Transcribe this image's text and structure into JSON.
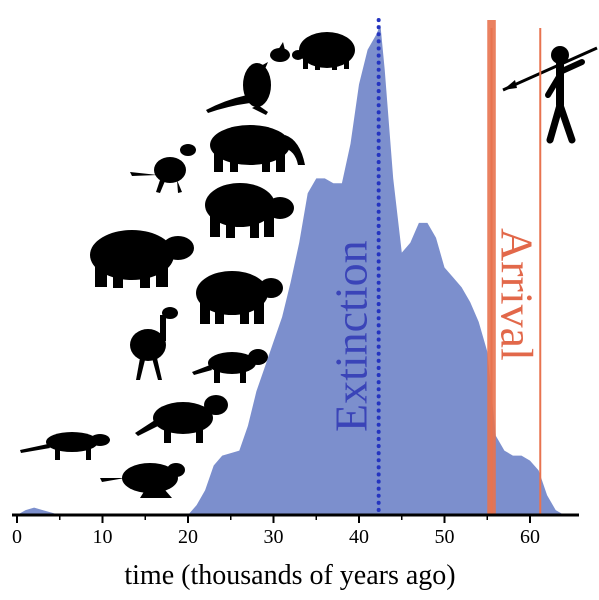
{
  "chart_data": {
    "type": "area",
    "xlabel": "time (thousands of years ago)",
    "xlim": [
      0,
      65
    ],
    "xticks": [
      0,
      10,
      20,
      30,
      40,
      50,
      60
    ],
    "ylim": [
      0,
      1
    ],
    "grid": false,
    "series": [
      {
        "color": "#7c8fcd",
        "x": [
          0,
          1,
          2,
          3,
          4,
          5,
          15,
          20,
          21,
          22,
          23,
          24,
          25,
          26,
          27,
          28,
          29,
          30,
          31,
          32,
          33,
          34,
          35,
          36,
          37,
          38,
          39,
          40,
          41,
          42,
          42.5,
          43,
          44,
          45,
          46,
          47,
          48,
          49,
          50,
          51,
          52,
          53,
          54,
          55,
          56,
          57,
          58,
          59,
          60,
          61,
          62,
          63,
          64,
          65
        ],
        "y": [
          0,
          0.01,
          0.015,
          0.01,
          0.005,
          0,
          0,
          0,
          0.02,
          0.05,
          0.1,
          0.12,
          0.125,
          0.13,
          0.18,
          0.25,
          0.3,
          0.35,
          0.4,
          0.47,
          0.55,
          0.65,
          0.68,
          0.68,
          0.67,
          0.67,
          0.75,
          0.87,
          0.94,
          0.97,
          0.99,
          0.9,
          0.68,
          0.53,
          0.55,
          0.59,
          0.59,
          0.56,
          0.5,
          0.48,
          0.46,
          0.43,
          0.39,
          0.33,
          0.16,
          0.13,
          0.12,
          0.12,
          0.11,
          0.09,
          0.04,
          0.01,
          0,
          0
        ]
      }
    ],
    "markers": [
      {
        "label": "Extinction",
        "x": 42.3,
        "color": "#2434c0",
        "style": "dotted"
      },
      {
        "label": "Arrival",
        "x": 55.5,
        "color": "#e8734f",
        "style": "solid",
        "band": [
          55,
          56
        ]
      },
      {
        "x": 61.2,
        "color": "#e8734f",
        "style": "solid"
      }
    ]
  }
}
